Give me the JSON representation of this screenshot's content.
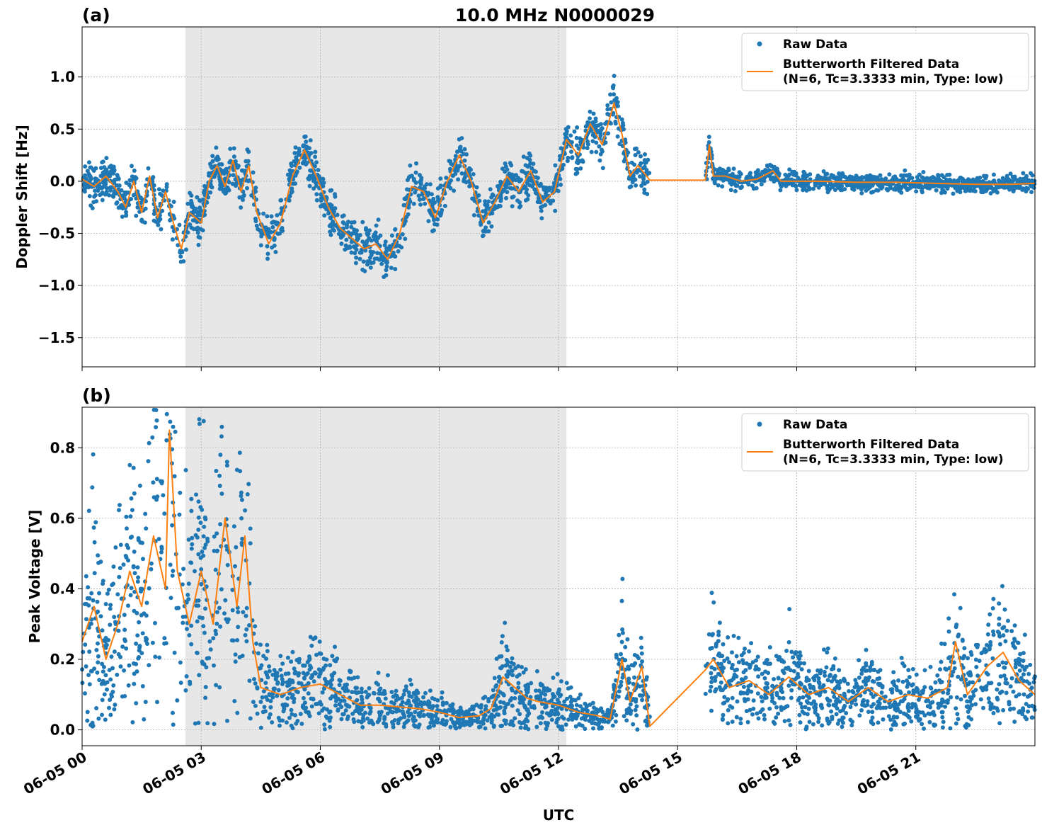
{
  "figure": {
    "title": "10.0 MHz N0000029",
    "xlabel": "UTC",
    "shade_color": "#e7e7e7",
    "raw_color": "#1f77b4",
    "filtered_color": "#ff7f0e"
  },
  "chart_data": [
    {
      "type": "scatter",
      "panel_label": "(a)",
      "ylabel": "Doppler Shift [Hz]",
      "x_unit": "hours UTC on 06-05",
      "xlim": [
        0,
        24
      ],
      "ylim": [
        -1.78,
        1.48
      ],
      "x_ticks": [
        0,
        3,
        6,
        9,
        12,
        15,
        18,
        21
      ],
      "x_tick_labels": [
        "06-05 00",
        "06-05 03",
        "06-05 06",
        "06-05 09",
        "06-05 12",
        "06-05 15",
        "06-05 18",
        "06-05 21"
      ],
      "y_ticks": [
        -1.5,
        -1.0,
        -0.5,
        0.0,
        0.5,
        1.0
      ],
      "y_tick_labels": [
        "−1.5",
        "−1.0",
        "−0.5",
        "0.0",
        "0.5",
        "1.0"
      ],
      "shaded_span_hours": [
        2.6,
        12.2
      ],
      "grid": true,
      "legend_position": "top-right",
      "legend": {
        "raw": "Raw Data",
        "filtered_line1": "Butterworth Filtered Data",
        "filtered_line2": "(N=6, Tc=3.3333 min, Type: low)"
      },
      "data_gaps_hours": [
        [
          14.3,
          15.7
        ]
      ],
      "filtered_points": [
        [
          0,
          0.02
        ],
        [
          0.3,
          -0.05
        ],
        [
          0.6,
          0.05
        ],
        [
          0.9,
          -0.1
        ],
        [
          1.1,
          -0.25
        ],
        [
          1.3,
          0.0
        ],
        [
          1.5,
          -0.3
        ],
        [
          1.7,
          0.05
        ],
        [
          1.9,
          -0.35
        ],
        [
          2.1,
          -0.1
        ],
        [
          2.3,
          -0.4
        ],
        [
          2.5,
          -0.65
        ],
        [
          2.7,
          -0.3
        ],
        [
          3.0,
          -0.4
        ],
        [
          3.2,
          0.0
        ],
        [
          3.4,
          0.15
        ],
        [
          3.6,
          -0.05
        ],
        [
          3.8,
          0.2
        ],
        [
          4.0,
          -0.1
        ],
        [
          4.2,
          0.15
        ],
        [
          4.4,
          -0.3
        ],
        [
          4.7,
          -0.6
        ],
        [
          5.0,
          -0.4
        ],
        [
          5.3,
          0.05
        ],
        [
          5.6,
          0.3
        ],
        [
          5.9,
          0.05
        ],
        [
          6.2,
          -0.25
        ],
        [
          6.5,
          -0.45
        ],
        [
          6.8,
          -0.55
        ],
        [
          7.1,
          -0.65
        ],
        [
          7.4,
          -0.6
        ],
        [
          7.7,
          -0.75
        ],
        [
          8.0,
          -0.5
        ],
        [
          8.3,
          -0.05
        ],
        [
          8.6,
          -0.1
        ],
        [
          8.9,
          -0.35
        ],
        [
          9.2,
          0.0
        ],
        [
          9.5,
          0.25
        ],
        [
          9.8,
          0.0
        ],
        [
          10.1,
          -0.4
        ],
        [
          10.4,
          -0.2
        ],
        [
          10.7,
          0.05
        ],
        [
          11.0,
          -0.1
        ],
        [
          11.3,
          0.1
        ],
        [
          11.6,
          -0.2
        ],
        [
          11.9,
          -0.1
        ],
        [
          12.2,
          0.4
        ],
        [
          12.5,
          0.25
        ],
        [
          12.8,
          0.55
        ],
        [
          13.1,
          0.35
        ],
        [
          13.4,
          0.75
        ],
        [
          13.6,
          0.45
        ],
        [
          13.8,
          0.05
        ],
        [
          14.0,
          0.15
        ],
        [
          14.3,
          0.01
        ],
        [
          15.7,
          0.01
        ],
        [
          15.8,
          0.35
        ],
        [
          15.9,
          0.05
        ],
        [
          16.2,
          0.05
        ],
        [
          16.6,
          0.0
        ],
        [
          17.0,
          0.02
        ],
        [
          17.4,
          0.1
        ],
        [
          17.6,
          0.0
        ],
        [
          18.5,
          0.0
        ],
        [
          19.5,
          -0.01
        ],
        [
          20.5,
          -0.01
        ],
        [
          21.5,
          -0.02
        ],
        [
          22.5,
          -0.03
        ],
        [
          23.4,
          -0.03
        ],
        [
          24.0,
          -0.02
        ]
      ],
      "raw_spread": 0.14
    },
    {
      "type": "scatter",
      "panel_label": "(b)",
      "ylabel": "Peak Voltage [V]",
      "x_unit": "hours UTC on 06-05",
      "xlim": [
        0,
        24
      ],
      "ylim": [
        -0.045,
        0.915
      ],
      "x_ticks": [
        0,
        3,
        6,
        9,
        12,
        15,
        18,
        21
      ],
      "x_tick_labels": [
        "06-05 00",
        "06-05 03",
        "06-05 06",
        "06-05 09",
        "06-05 12",
        "06-05 15",
        "06-05 18",
        "06-05 21"
      ],
      "y_ticks": [
        0.0,
        0.2,
        0.4,
        0.6,
        0.8
      ],
      "y_tick_labels": [
        "0.0",
        "0.2",
        "0.4",
        "0.6",
        "0.8"
      ],
      "shaded_span_hours": [
        2.6,
        12.2
      ],
      "grid": true,
      "legend_position": "top-right",
      "legend": {
        "raw": "Raw Data",
        "filtered_line1": "Butterworth Filtered Data",
        "filtered_line2": "(N=6, Tc=3.3333 min, Type: low)"
      },
      "data_gaps_hours": [
        [
          14.3,
          15.7
        ]
      ],
      "filtered_points": [
        [
          0,
          0.25
        ],
        [
          0.3,
          0.35
        ],
        [
          0.6,
          0.2
        ],
        [
          0.9,
          0.3
        ],
        [
          1.2,
          0.45
        ],
        [
          1.5,
          0.35
        ],
        [
          1.8,
          0.55
        ],
        [
          2.1,
          0.4
        ],
        [
          2.2,
          0.85
        ],
        [
          2.4,
          0.45
        ],
        [
          2.7,
          0.3
        ],
        [
          3.0,
          0.45
        ],
        [
          3.3,
          0.3
        ],
        [
          3.6,
          0.6
        ],
        [
          3.9,
          0.35
        ],
        [
          4.1,
          0.55
        ],
        [
          4.3,
          0.25
        ],
        [
          4.5,
          0.12
        ],
        [
          5.0,
          0.1
        ],
        [
          5.5,
          0.12
        ],
        [
          6.0,
          0.13
        ],
        [
          6.5,
          0.1
        ],
        [
          7.0,
          0.07
        ],
        [
          7.5,
          0.07
        ],
        [
          8.0,
          0.065
        ],
        [
          8.5,
          0.06
        ],
        [
          9.0,
          0.05
        ],
        [
          9.5,
          0.035
        ],
        [
          10.0,
          0.04
        ],
        [
          10.3,
          0.06
        ],
        [
          10.6,
          0.15
        ],
        [
          10.9,
          0.12
        ],
        [
          11.2,
          0.09
        ],
        [
          11.5,
          0.08
        ],
        [
          12.0,
          0.07
        ],
        [
          12.5,
          0.05
        ],
        [
          13.0,
          0.04
        ],
        [
          13.3,
          0.03
        ],
        [
          13.6,
          0.2
        ],
        [
          13.8,
          0.08
        ],
        [
          14.1,
          0.18
        ],
        [
          14.3,
          0.01
        ],
        [
          15.7,
          0.17
        ],
        [
          15.9,
          0.2
        ],
        [
          16.3,
          0.12
        ],
        [
          16.8,
          0.14
        ],
        [
          17.3,
          0.1
        ],
        [
          17.8,
          0.15
        ],
        [
          18.3,
          0.1
        ],
        [
          18.8,
          0.12
        ],
        [
          19.3,
          0.08
        ],
        [
          19.8,
          0.12
        ],
        [
          20.3,
          0.08
        ],
        [
          20.8,
          0.1
        ],
        [
          21.3,
          0.09
        ],
        [
          21.8,
          0.12
        ],
        [
          22.0,
          0.25
        ],
        [
          22.3,
          0.1
        ],
        [
          22.8,
          0.18
        ],
        [
          23.2,
          0.22
        ],
        [
          23.6,
          0.14
        ],
        [
          24.0,
          0.1
        ]
      ],
      "raw_spread": 0.12
    }
  ]
}
